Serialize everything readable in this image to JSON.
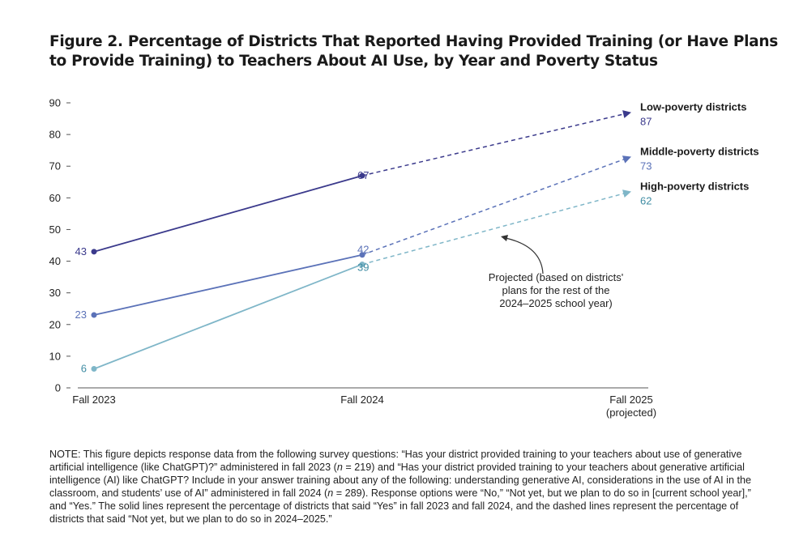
{
  "title": {
    "figure_label": "Figure 2.",
    "text": "Percentage of Districts That Reported Having Provided Training (or Have Plans to Provide Training) to Teachers About AI Use, by Year and Poverty Status"
  },
  "annotation": {
    "lines": [
      "Projected (based on districts'",
      "plans for the rest of the",
      "2024–2025 school year)"
    ]
  },
  "note": {
    "p1": "NOTE: This figure depicts response data from the following survey questions: “Has your district provided training to your teachers about use of generative artificial intelligence (like ChatGPT)?” administered in fall 2023 (",
    "n1_var": "n",
    "n1_val": " = 219) and “Has your district provided training to your teachers about generative artificial intelligence (AI) like ChatGPT? Include in your answer training about any of the following: understanding generative AI, considerations in the use of AI in the classroom, and students’ use of AI” administered in fall 2024 (",
    "n2_var": "n",
    "n2_val": " = 289). Response options were “No,” “Not yet, but we plan to do so in [current school year],” and “Yes.” The solid lines represent the percentage of districts that said “Yes” in fall 2023 and fall 2024, and the dashed lines represent the percentage of districts that said “Not yet, but we plan to do so in 2024–2025.”"
  },
  "chart_data": {
    "type": "line",
    "categories": [
      "Fall 2023",
      "Fall 2024",
      "Fall 2025 (projected)"
    ],
    "category_labels": [
      [
        "Fall 2023"
      ],
      [
        "Fall 2024"
      ],
      [
        "Fall 2025",
        "(projected)"
      ]
    ],
    "ylim": [
      0,
      90
    ],
    "yticks": [
      0,
      10,
      20,
      30,
      40,
      50,
      60,
      70,
      80,
      90
    ],
    "grid": false,
    "legend": "inline-right",
    "series": [
      {
        "name": "Low-poverty districts",
        "values": [
          43,
          67,
          87
        ],
        "color": "#3b3a8c",
        "projected_from_index": 1
      },
      {
        "name": "Middle-poverty districts",
        "values": [
          23,
          42,
          73
        ],
        "color": "#5b72b8",
        "projected_from_index": 1
      },
      {
        "name": "High-poverty districts",
        "values": [
          6,
          39,
          62
        ],
        "color": "#7fb6c8",
        "label_color": "#3f8ca3",
        "projected_from_index": 1
      }
    ]
  }
}
